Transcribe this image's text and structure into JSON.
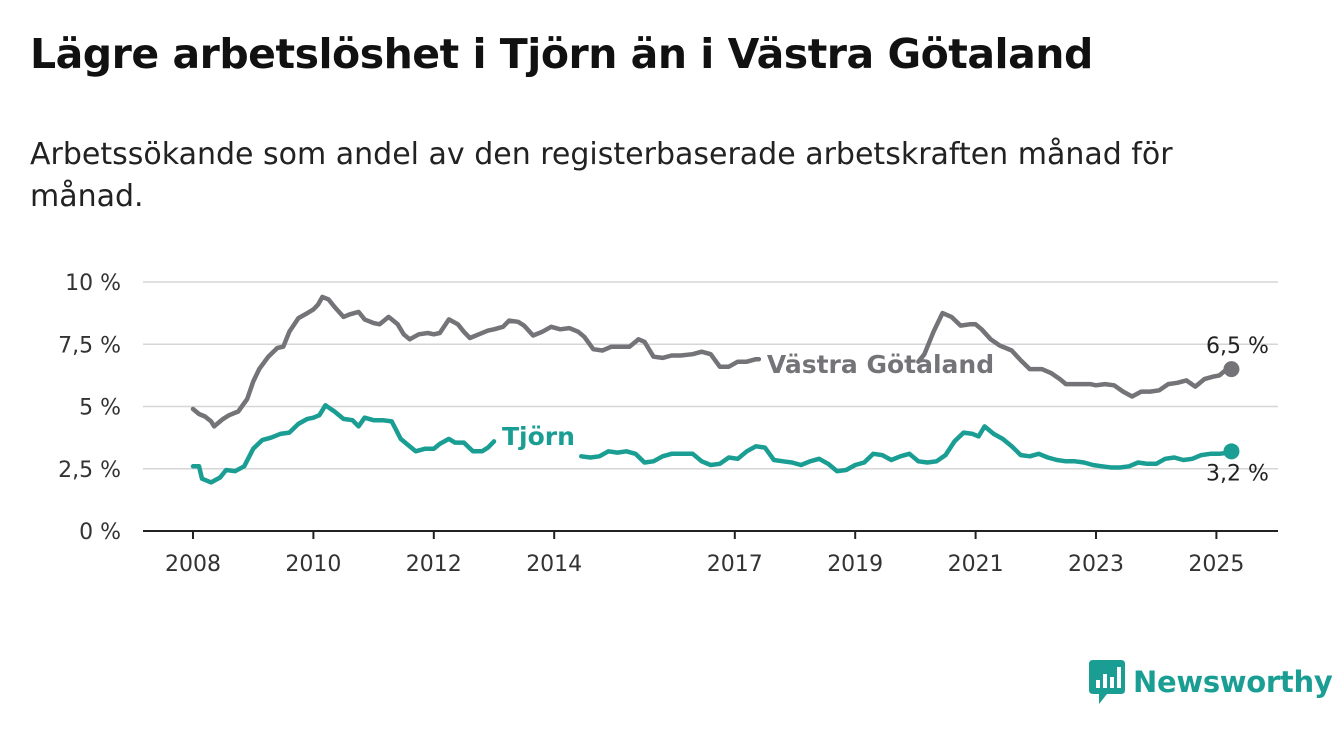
{
  "title": "Lägre arbetslöshet i Tjörn än i Västra Götaland",
  "subtitle": "Arbetssökande som andel av den registerbaserade arbetskraften månad för månad.",
  "brand": {
    "name": "Newsworthy",
    "icon": "newsworthy-logo-icon",
    "color": "#1a9e93"
  },
  "chart_data": {
    "type": "line",
    "xlabel": "",
    "ylabel": "",
    "xlim": [
      2007.6,
      2026.0
    ],
    "ylim": [
      0,
      10
    ],
    "y_ticks": [
      {
        "value": 0,
        "label": "0 %"
      },
      {
        "value": 2.5,
        "label": "2,5 %"
      },
      {
        "value": 5,
        "label": "5 %"
      },
      {
        "value": 7.5,
        "label": "7,5 %"
      },
      {
        "value": 10,
        "label": "10 %"
      }
    ],
    "x_ticks": [
      {
        "value": 2008,
        "label": "2008"
      },
      {
        "value": 2010,
        "label": "2010"
      },
      {
        "value": 2012,
        "label": "2012"
      },
      {
        "value": 2014,
        "label": "2014"
      },
      {
        "value": 2017,
        "label": "2017"
      },
      {
        "value": 2019,
        "label": "2019"
      },
      {
        "value": 2021,
        "label": "2021"
      },
      {
        "value": 2023,
        "label": "2023"
      },
      {
        "value": 2025,
        "label": "2025"
      }
    ],
    "grid": true,
    "series": [
      {
        "name": "Västra Götaland",
        "color": "#737378",
        "end_label": "6,5 %",
        "gap": [
          2017.4,
          2020.05
        ],
        "points": [
          [
            2008.0,
            4.9
          ],
          [
            2008.1,
            4.7
          ],
          [
            2008.2,
            4.6
          ],
          [
            2008.3,
            4.4
          ],
          [
            2008.35,
            4.2
          ],
          [
            2008.5,
            4.5
          ],
          [
            2008.6,
            4.65
          ],
          [
            2008.75,
            4.8
          ],
          [
            2008.9,
            5.3
          ],
          [
            2009.0,
            6.0
          ],
          [
            2009.1,
            6.5
          ],
          [
            2009.25,
            7.0
          ],
          [
            2009.4,
            7.35
          ],
          [
            2009.5,
            7.4
          ],
          [
            2009.6,
            8.0
          ],
          [
            2009.75,
            8.55
          ],
          [
            2009.9,
            8.75
          ],
          [
            2010.0,
            8.9
          ],
          [
            2010.08,
            9.1
          ],
          [
            2010.15,
            9.4
          ],
          [
            2010.25,
            9.3
          ],
          [
            2010.35,
            9.0
          ],
          [
            2010.5,
            8.6
          ],
          [
            2010.6,
            8.7
          ],
          [
            2010.75,
            8.8
          ],
          [
            2010.85,
            8.5
          ],
          [
            2011.0,
            8.35
          ],
          [
            2011.1,
            8.3
          ],
          [
            2011.25,
            8.6
          ],
          [
            2011.4,
            8.3
          ],
          [
            2011.5,
            7.9
          ],
          [
            2011.6,
            7.7
          ],
          [
            2011.75,
            7.9
          ],
          [
            2011.9,
            7.95
          ],
          [
            2012.0,
            7.9
          ],
          [
            2012.1,
            7.95
          ],
          [
            2012.25,
            8.5
          ],
          [
            2012.4,
            8.3
          ],
          [
            2012.5,
            8.0
          ],
          [
            2012.6,
            7.75
          ],
          [
            2012.75,
            7.9
          ],
          [
            2012.9,
            8.05
          ],
          [
            2013.0,
            8.1
          ],
          [
            2013.15,
            8.2
          ],
          [
            2013.25,
            8.45
          ],
          [
            2013.4,
            8.4
          ],
          [
            2013.5,
            8.25
          ],
          [
            2013.65,
            7.85
          ],
          [
            2013.8,
            8.0
          ],
          [
            2013.95,
            8.2
          ],
          [
            2014.1,
            8.1
          ],
          [
            2014.25,
            8.15
          ],
          [
            2014.4,
            8.0
          ],
          [
            2014.5,
            7.8
          ],
          [
            2014.65,
            7.3
          ],
          [
            2014.8,
            7.25
          ],
          [
            2014.95,
            7.4
          ],
          [
            2015.1,
            7.4
          ],
          [
            2015.25,
            7.4
          ],
          [
            2015.4,
            7.7
          ],
          [
            2015.5,
            7.6
          ],
          [
            2015.65,
            7.0
          ],
          [
            2015.8,
            6.95
          ],
          [
            2015.95,
            7.05
          ],
          [
            2016.1,
            7.05
          ],
          [
            2016.3,
            7.1
          ],
          [
            2016.45,
            7.2
          ],
          [
            2016.6,
            7.1
          ],
          [
            2016.75,
            6.6
          ],
          [
            2016.9,
            6.6
          ],
          [
            2017.05,
            6.8
          ],
          [
            2017.2,
            6.8
          ],
          [
            2017.35,
            6.9
          ],
          [
            2017.4,
            6.9
          ],
          [
            2020.05,
            6.8
          ],
          [
            2020.15,
            7.1
          ],
          [
            2020.3,
            8.0
          ],
          [
            2020.45,
            8.75
          ],
          [
            2020.6,
            8.6
          ],
          [
            2020.75,
            8.25
          ],
          [
            2020.9,
            8.3
          ],
          [
            2021.0,
            8.3
          ],
          [
            2021.1,
            8.1
          ],
          [
            2021.25,
            7.7
          ],
          [
            2021.4,
            7.45
          ],
          [
            2021.6,
            7.25
          ],
          [
            2021.75,
            6.85
          ],
          [
            2021.9,
            6.5
          ],
          [
            2022.1,
            6.5
          ],
          [
            2022.25,
            6.35
          ],
          [
            2022.4,
            6.1
          ],
          [
            2022.5,
            5.9
          ],
          [
            2022.7,
            5.9
          ],
          [
            2022.9,
            5.9
          ],
          [
            2023.0,
            5.85
          ],
          [
            2023.15,
            5.9
          ],
          [
            2023.3,
            5.85
          ],
          [
            2023.45,
            5.6
          ],
          [
            2023.6,
            5.4
          ],
          [
            2023.75,
            5.6
          ],
          [
            2023.9,
            5.6
          ],
          [
            2024.05,
            5.65
          ],
          [
            2024.2,
            5.9
          ],
          [
            2024.35,
            5.95
          ],
          [
            2024.5,
            6.05
          ],
          [
            2024.65,
            5.8
          ],
          [
            2024.8,
            6.1
          ],
          [
            2024.95,
            6.2
          ],
          [
            2025.05,
            6.25
          ],
          [
            2025.15,
            6.45
          ],
          [
            2025.25,
            6.5
          ]
        ]
      },
      {
        "name": "Tjörn",
        "color": "#1a9e93",
        "end_label": "3,2 %",
        "gap": [
          2013.0,
          2014.45
        ],
        "points": [
          [
            2008.0,
            2.6
          ],
          [
            2008.1,
            2.6
          ],
          [
            2008.15,
            2.1
          ],
          [
            2008.3,
            1.95
          ],
          [
            2008.45,
            2.15
          ],
          [
            2008.55,
            2.45
          ],
          [
            2008.7,
            2.4
          ],
          [
            2008.85,
            2.6
          ],
          [
            2009.0,
            3.3
          ],
          [
            2009.15,
            3.65
          ],
          [
            2009.3,
            3.75
          ],
          [
            2009.45,
            3.9
          ],
          [
            2009.6,
            3.95
          ],
          [
            2009.75,
            4.3
          ],
          [
            2009.9,
            4.5
          ],
          [
            2010.0,
            4.55
          ],
          [
            2010.1,
            4.65
          ],
          [
            2010.2,
            5.05
          ],
          [
            2010.35,
            4.8
          ],
          [
            2010.5,
            4.5
          ],
          [
            2010.65,
            4.45
          ],
          [
            2010.75,
            4.2
          ],
          [
            2010.85,
            4.55
          ],
          [
            2011.0,
            4.45
          ],
          [
            2011.15,
            4.45
          ],
          [
            2011.3,
            4.4
          ],
          [
            2011.45,
            3.7
          ],
          [
            2011.55,
            3.5
          ],
          [
            2011.7,
            3.2
          ],
          [
            2011.85,
            3.3
          ],
          [
            2012.0,
            3.3
          ],
          [
            2012.1,
            3.5
          ],
          [
            2012.25,
            3.7
          ],
          [
            2012.35,
            3.55
          ],
          [
            2012.5,
            3.55
          ],
          [
            2012.65,
            3.2
          ],
          [
            2012.8,
            3.2
          ],
          [
            2012.9,
            3.35
          ],
          [
            2013.0,
            3.6
          ],
          [
            2014.45,
            3.0
          ],
          [
            2014.6,
            2.95
          ],
          [
            2014.75,
            3.0
          ],
          [
            2014.9,
            3.2
          ],
          [
            2015.05,
            3.15
          ],
          [
            2015.2,
            3.2
          ],
          [
            2015.35,
            3.1
          ],
          [
            2015.5,
            2.75
          ],
          [
            2015.65,
            2.8
          ],
          [
            2015.8,
            3.0
          ],
          [
            2015.95,
            3.1
          ],
          [
            2016.1,
            3.1
          ],
          [
            2016.3,
            3.1
          ],
          [
            2016.45,
            2.8
          ],
          [
            2016.6,
            2.65
          ],
          [
            2016.75,
            2.7
          ],
          [
            2016.9,
            2.95
          ],
          [
            2017.05,
            2.9
          ],
          [
            2017.2,
            3.2
          ],
          [
            2017.35,
            3.4
          ],
          [
            2017.5,
            3.35
          ],
          [
            2017.65,
            2.85
          ],
          [
            2017.8,
            2.8
          ],
          [
            2017.95,
            2.75
          ],
          [
            2018.1,
            2.65
          ],
          [
            2018.25,
            2.8
          ],
          [
            2018.4,
            2.9
          ],
          [
            2018.55,
            2.7
          ],
          [
            2018.7,
            2.4
          ],
          [
            2018.85,
            2.45
          ],
          [
            2019.0,
            2.65
          ],
          [
            2019.15,
            2.75
          ],
          [
            2019.3,
            3.1
          ],
          [
            2019.45,
            3.05
          ],
          [
            2019.6,
            2.85
          ],
          [
            2019.75,
            3.0
          ],
          [
            2019.9,
            3.1
          ],
          [
            2020.05,
            2.8
          ],
          [
            2020.2,
            2.75
          ],
          [
            2020.35,
            2.8
          ],
          [
            2020.5,
            3.05
          ],
          [
            2020.65,
            3.6
          ],
          [
            2020.8,
            3.95
          ],
          [
            2020.95,
            3.9
          ],
          [
            2021.05,
            3.8
          ],
          [
            2021.15,
            4.2
          ],
          [
            2021.3,
            3.9
          ],
          [
            2021.45,
            3.7
          ],
          [
            2021.6,
            3.4
          ],
          [
            2021.75,
            3.05
          ],
          [
            2021.9,
            3.0
          ],
          [
            2022.05,
            3.1
          ],
          [
            2022.2,
            2.95
          ],
          [
            2022.35,
            2.85
          ],
          [
            2022.5,
            2.8
          ],
          [
            2022.65,
            2.8
          ],
          [
            2022.8,
            2.75
          ],
          [
            2022.95,
            2.65
          ],
          [
            2023.1,
            2.6
          ],
          [
            2023.25,
            2.55
          ],
          [
            2023.4,
            2.55
          ],
          [
            2023.55,
            2.6
          ],
          [
            2023.7,
            2.75
          ],
          [
            2023.85,
            2.7
          ],
          [
            2024.0,
            2.7
          ],
          [
            2024.15,
            2.9
          ],
          [
            2024.3,
            2.95
          ],
          [
            2024.45,
            2.85
          ],
          [
            2024.6,
            2.9
          ],
          [
            2024.75,
            3.05
          ],
          [
            2024.9,
            3.1
          ],
          [
            2025.05,
            3.1
          ],
          [
            2025.2,
            3.15
          ],
          [
            2025.25,
            3.2
          ]
        ]
      }
    ]
  }
}
